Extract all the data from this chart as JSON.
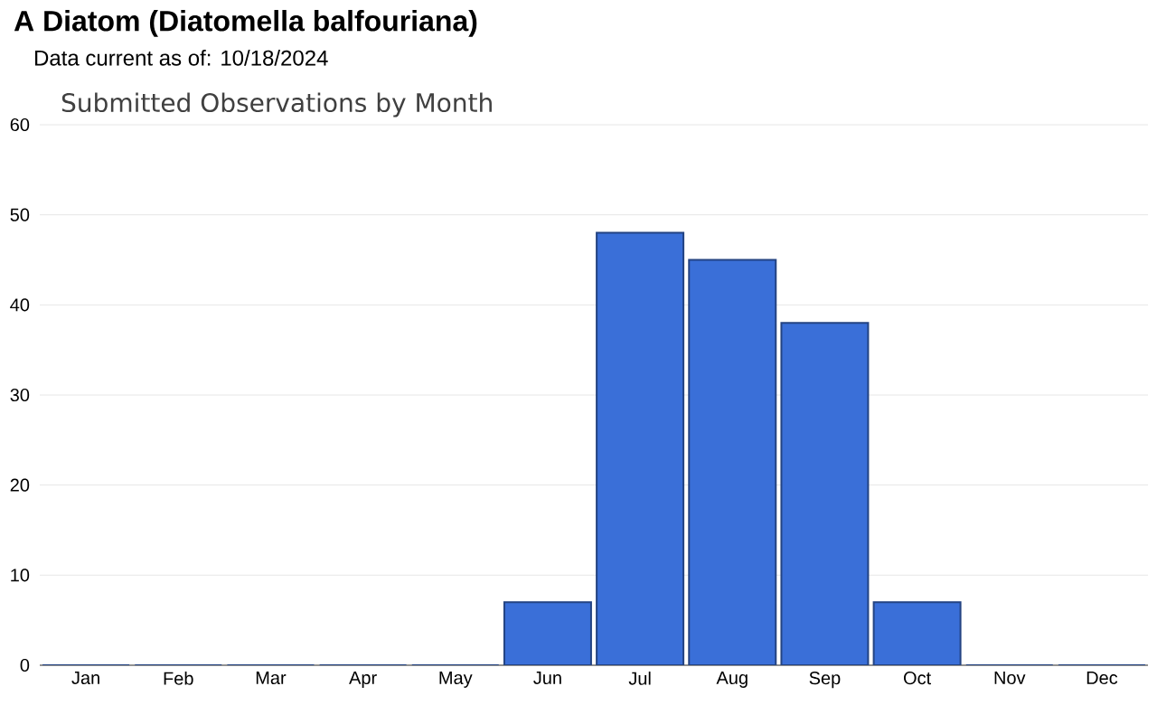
{
  "chart_data": {
    "type": "bar",
    "title": "A Diatom   (Diatomella balfouriana)",
    "subtitle": "Data current as of: 10/18/2024",
    "annotations": [
      "Submitted Observations by Month"
    ],
    "categories": [
      "Jan",
      "Feb",
      "Mar",
      "Apr",
      "May",
      "Jun",
      "Jul",
      "Aug",
      "Sep",
      "Oct",
      "Nov",
      "Dec"
    ],
    "values": [
      0,
      0,
      0,
      0,
      0,
      7,
      48,
      45,
      38,
      7,
      0,
      0
    ],
    "color": "#3a6fd8",
    "ylim": [
      0,
      60
    ],
    "yticks": [
      0,
      10,
      20,
      30,
      40,
      50,
      60
    ],
    "grid": "y"
  }
}
